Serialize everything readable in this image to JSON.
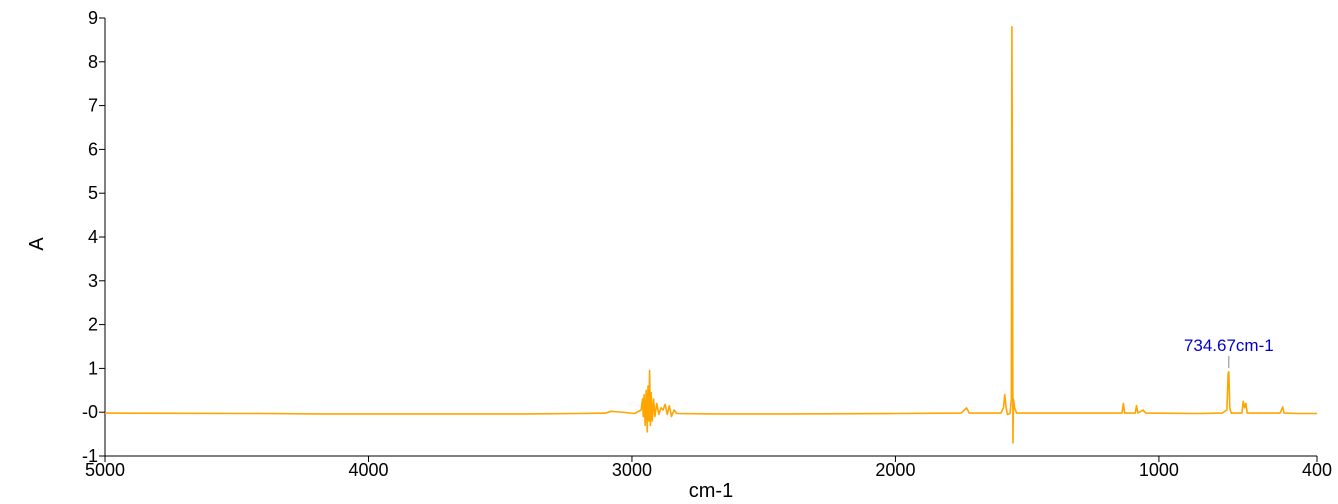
{
  "chart_data": {
    "type": "line",
    "title": "",
    "xlabel": "cm-1",
    "ylabel": "A",
    "xlim": [
      5000,
      400
    ],
    "ylim": [
      -1,
      9
    ],
    "x_reversed": true,
    "grid": false,
    "legend": "none",
    "x_ticks": [
      5000,
      4000,
      3000,
      2000,
      1000,
      400
    ],
    "x_tick_labels": [
      "5000",
      "4000",
      "3000",
      "2000",
      "1000",
      "400"
    ],
    "y_ticks": [
      -1,
      0,
      1,
      2,
      3,
      4,
      5,
      6,
      7,
      8,
      9
    ],
    "y_tick_labels": [
      "-1",
      "-0",
      "1",
      "2",
      "3",
      "4",
      "5",
      "6",
      "7",
      "8",
      "9"
    ],
    "series": [
      {
        "color": "#FFA500",
        "points": [
          [
            5000,
            -0.02
          ],
          [
            4400,
            -0.03
          ],
          [
            4200,
            -0.04
          ],
          [
            3800,
            -0.04
          ],
          [
            3400,
            -0.04
          ],
          [
            3200,
            -0.03
          ],
          [
            3100,
            -0.02
          ],
          [
            3080,
            0.02
          ],
          [
            3060,
            0.01
          ],
          [
            3020,
            -0.01
          ],
          [
            2990,
            -0.03
          ],
          [
            2965,
            0.05
          ],
          [
            2960,
            0.3
          ],
          [
            2957,
            -0.1
          ],
          [
            2954,
            0.4
          ],
          [
            2950,
            -0.3
          ],
          [
            2946,
            0.5
          ],
          [
            2942,
            -0.45
          ],
          [
            2939,
            0.6
          ],
          [
            2936,
            -0.2
          ],
          [
            2933,
            0.95
          ],
          [
            2930,
            -0.3
          ],
          [
            2927,
            0.45
          ],
          [
            2923,
            -0.2
          ],
          [
            2918,
            0.3
          ],
          [
            2913,
            -0.1
          ],
          [
            2906,
            0.2
          ],
          [
            2898,
            -0.05
          ],
          [
            2890,
            0.1
          ],
          [
            2882,
            0.05
          ],
          [
            2874,
            0.18
          ],
          [
            2866,
            -0.05
          ],
          [
            2858,
            0.15
          ],
          [
            2850,
            -0.1
          ],
          [
            2840,
            0.05
          ],
          [
            2830,
            -0.03
          ],
          [
            2700,
            -0.04
          ],
          [
            2400,
            -0.04
          ],
          [
            2000,
            -0.03
          ],
          [
            1750,
            -0.02
          ],
          [
            1730,
            0.1
          ],
          [
            1720,
            -0.02
          ],
          [
            1600,
            -0.02
          ],
          [
            1590,
            0.1
          ],
          [
            1585,
            0.4
          ],
          [
            1580,
            0.1
          ],
          [
            1575,
            -0.05
          ],
          [
            1565,
            -0.03
          ],
          [
            1560,
            0.3
          ],
          [
            1558,
            8.8
          ],
          [
            1556,
            5.0
          ],
          [
            1554,
            -0.7
          ],
          [
            1552,
            0.3
          ],
          [
            1548,
            0.1
          ],
          [
            1540,
            -0.02
          ],
          [
            1200,
            -0.02
          ],
          [
            1140,
            -0.02
          ],
          [
            1135,
            0.2
          ],
          [
            1130,
            -0.02
          ],
          [
            1090,
            -0.02
          ],
          [
            1085,
            0.15
          ],
          [
            1080,
            -0.02
          ],
          [
            1060,
            0.05
          ],
          [
            1050,
            -0.02
          ],
          [
            850,
            -0.03
          ],
          [
            760,
            -0.02
          ],
          [
            742,
            0.05
          ],
          [
            737,
            0.9
          ],
          [
            734.67,
            0.92
          ],
          [
            731,
            0.1
          ],
          [
            726,
            -0.02
          ],
          [
            685,
            -0.02
          ],
          [
            680,
            0.25
          ],
          [
            675,
            0.1
          ],
          [
            670,
            0.2
          ],
          [
            665,
            -0.02
          ],
          [
            540,
            -0.02
          ],
          [
            530,
            0.12
          ],
          [
            525,
            -0.02
          ],
          [
            470,
            -0.03
          ],
          [
            400,
            -0.03
          ]
        ]
      }
    ],
    "annotations": [
      {
        "text": "734.67cm-1",
        "x": 734.67,
        "y": 0.92,
        "color": "#0000CC"
      }
    ]
  }
}
